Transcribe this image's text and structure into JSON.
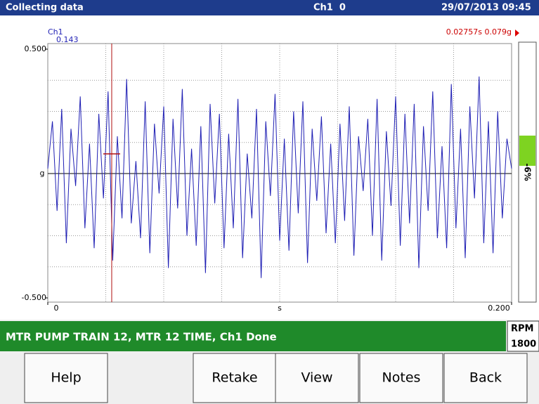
{
  "header": {
    "title": "Collecting data",
    "channel": "Ch1  0",
    "datetime": "29/07/2013 09:45"
  },
  "chart_data": {
    "type": "line",
    "channel_label": "Ch1",
    "overall_label": "0.143",
    "xlabel": "s",
    "ylabel": "g",
    "color": "#1f1fb4",
    "xlim": [
      0,
      0.2
    ],
    "ylim": [
      -0.5,
      0.5
    ],
    "xticks": [
      0,
      {
        "value": 0.2,
        "label": "0.200"
      }
    ],
    "yticks": [
      {
        "value": -0.5,
        "label": "-0.500"
      },
      {
        "value": 0.5,
        "label": "0.500"
      }
    ],
    "xgrid": [
      0.025,
      0.05,
      0.075,
      0.1,
      0.125,
      0.15,
      0.175
    ],
    "ygrid": [
      -0.375,
      -0.25,
      -0.125,
      0.125,
      0.25,
      0.375
    ],
    "x": [
      0,
      0.002,
      0.004,
      0.006,
      0.008,
      0.01,
      0.012,
      0.014,
      0.016,
      0.018,
      0.02,
      0.022,
      0.024,
      0.026,
      0.028,
      0.03,
      0.032,
      0.034,
      0.036,
      0.038,
      0.04,
      0.042,
      0.044,
      0.046,
      0.048,
      0.05,
      0.052,
      0.054,
      0.056,
      0.058,
      0.06,
      0.062,
      0.064,
      0.066,
      0.068,
      0.07,
      0.072,
      0.074,
      0.076,
      0.078,
      0.08,
      0.082,
      0.084,
      0.086,
      0.088,
      0.09,
      0.092,
      0.094,
      0.096,
      0.098,
      0.1,
      0.102,
      0.104,
      0.106,
      0.108,
      0.11,
      0.112,
      0.114,
      0.116,
      0.118,
      0.12,
      0.122,
      0.124,
      0.126,
      0.128,
      0.13,
      0.132,
      0.134,
      0.136,
      0.138,
      0.14,
      0.142,
      0.144,
      0.146,
      0.148,
      0.15,
      0.152,
      0.154,
      0.156,
      0.158,
      0.16,
      0.162,
      0.164,
      0.166,
      0.168,
      0.17,
      0.172,
      0.174,
      0.176,
      0.178,
      0.18,
      0.182,
      0.184,
      0.186,
      0.188,
      0.19,
      0.192,
      0.194,
      0.196,
      0.198,
      0.2
    ],
    "values": [
      0.02,
      0.21,
      -0.15,
      0.26,
      -0.28,
      0.18,
      -0.05,
      0.31,
      -0.22,
      0.12,
      -0.3,
      0.24,
      -0.1,
      0.33,
      -0.35,
      0.15,
      -0.18,
      0.38,
      -0.2,
      0.05,
      -0.26,
      0.29,
      -0.32,
      0.2,
      -0.08,
      0.27,
      -0.38,
      0.22,
      -0.14,
      0.34,
      -0.25,
      0.1,
      -0.29,
      0.19,
      -0.4,
      0.28,
      -0.12,
      0.24,
      -0.3,
      0.16,
      -0.22,
      0.3,
      -0.34,
      0.08,
      -0.18,
      0.26,
      -0.42,
      0.21,
      -0.09,
      0.32,
      -0.27,
      0.14,
      -0.31,
      0.25,
      -0.16,
      0.29,
      -0.36,
      0.18,
      -0.11,
      0.23,
      -0.24,
      0.12,
      -0.28,
      0.2,
      -0.19,
      0.27,
      -0.33,
      0.15,
      -0.07,
      0.22,
      -0.25,
      0.3,
      -0.35,
      0.17,
      -0.13,
      0.31,
      -0.29,
      0.24,
      -0.2,
      0.28,
      -0.38,
      0.19,
      -0.15,
      0.33,
      -0.26,
      0.11,
      -0.3,
      0.36,
      -0.22,
      0.18,
      -0.34,
      0.27,
      -0.1,
      0.39,
      -0.28,
      0.21,
      -0.32,
      0.25,
      -0.18,
      0.14,
      0.02
    ],
    "cursor": {
      "x": 0.02757,
      "y": 0.079,
      "label": "0.02757s 0.079g"
    },
    "gauge": {
      "value": -6,
      "label": "-6%"
    }
  },
  "status": {
    "text": "MTR PUMP TRAIN 12, MTR 12 TIME, Ch1 Done",
    "rpm_label": "RPM",
    "rpm_value": "1800"
  },
  "buttons": [
    "Help",
    "Retake",
    "View",
    "Notes",
    "Back"
  ]
}
